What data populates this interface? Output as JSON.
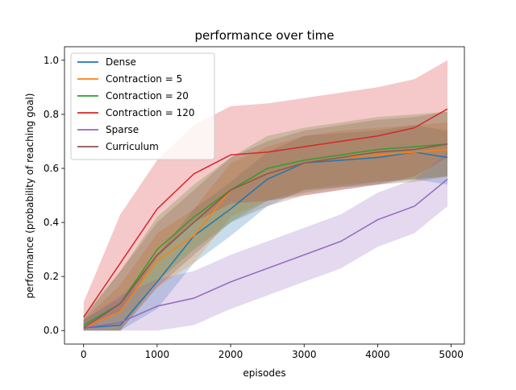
{
  "chart_data": {
    "type": "line",
    "title": "performance over time",
    "xlabel": "episodes",
    "ylabel": "performance (probability of reaching goal)",
    "xlim": [
      -260,
      5180
    ],
    "ylim": [
      -0.05,
      1.05
    ],
    "xticks": [
      0,
      1000,
      2000,
      3000,
      4000,
      5000
    ],
    "xtick_labels": [
      "0",
      "1000",
      "2000",
      "3000",
      "4000",
      "5000"
    ],
    "yticks": [
      0.0,
      0.2,
      0.4,
      0.6,
      0.8,
      1.0
    ],
    "ytick_labels": [
      "0.0",
      "0.2",
      "0.4",
      "0.6",
      "0.8",
      "1.0"
    ],
    "grid": false,
    "legend_position": "top-left",
    "band": "shaded variability band around each series",
    "x": [
      0,
      500,
      1000,
      1500,
      2000,
      2500,
      3000,
      3500,
      4000,
      4500,
      4950
    ],
    "series": [
      {
        "name": "Dense",
        "color": "#1f77b4",
        "values": [
          0.01,
          0.02,
          0.18,
          0.35,
          0.45,
          0.56,
          0.62,
          0.63,
          0.64,
          0.66,
          0.64
        ],
        "band": 0.1
      },
      {
        "name": "Contraction = 5",
        "color": "#ff7f0e",
        "values": [
          0.01,
          0.07,
          0.26,
          0.35,
          0.52,
          0.58,
          0.62,
          0.64,
          0.65,
          0.66,
          0.67
        ],
        "band": 0.1
      },
      {
        "name": "Contraction = 20",
        "color": "#2ca02c",
        "values": [
          0.02,
          0.1,
          0.3,
          0.42,
          0.52,
          0.6,
          0.63,
          0.65,
          0.67,
          0.68,
          0.69
        ],
        "band": 0.12
      },
      {
        "name": "Contraction = 120",
        "color": "#d62728",
        "values": [
          0.05,
          0.25,
          0.45,
          0.58,
          0.65,
          0.66,
          0.68,
          0.7,
          0.72,
          0.75,
          0.82
        ],
        "band": 0.18
      },
      {
        "name": "Sparse",
        "color": "#9467bd",
        "values": [
          0.01,
          0.03,
          0.09,
          0.12,
          0.18,
          0.23,
          0.28,
          0.33,
          0.41,
          0.46,
          0.56
        ],
        "band": 0.1
      },
      {
        "name": "Curriculum",
        "color": "#8c564b",
        "values": [
          0.01,
          0.1,
          0.28,
          0.4,
          0.52,
          0.58,
          0.62,
          0.64,
          0.66,
          0.67,
          0.69
        ],
        "band": 0.12
      }
    ]
  }
}
